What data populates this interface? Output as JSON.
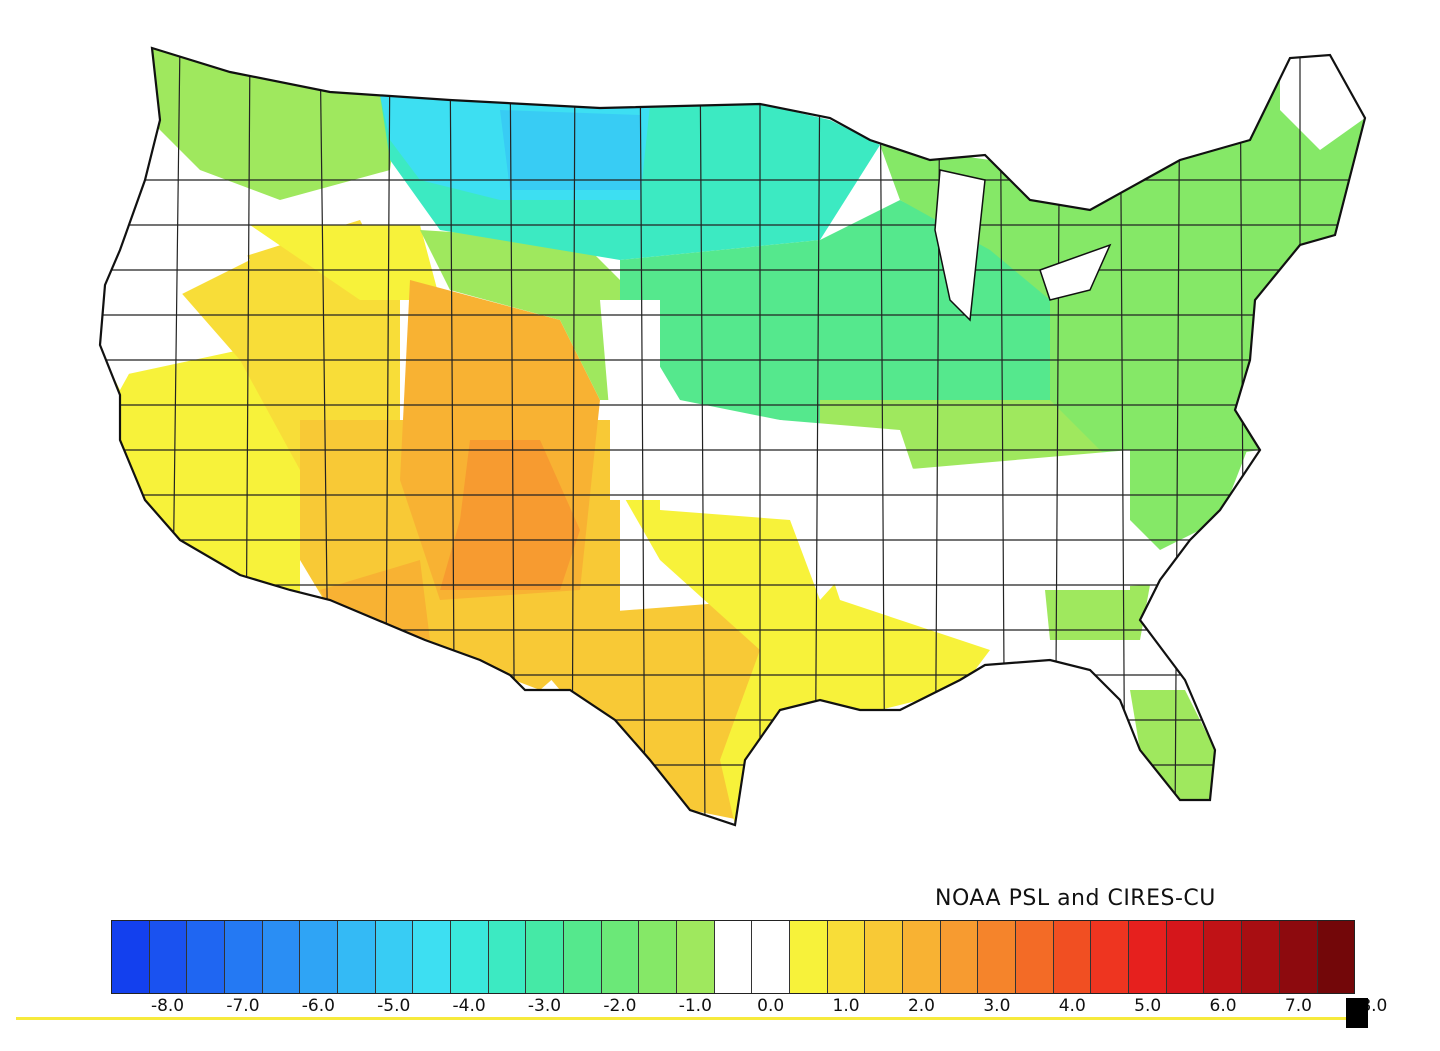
{
  "credit": "NOAA PSL and CIRES-CU",
  "legend": {
    "labels": [
      "-8.0",
      "-7.0",
      "-6.0",
      "-5.0",
      "-4.0",
      "-3.0",
      "-2.0",
      "-1.0",
      "0.0",
      "1.0",
      "2.0",
      "3.0",
      "4.0",
      "5.0",
      "6.0",
      "7.0",
      "8.0"
    ],
    "colors": [
      "#1340ee",
      "#1a52f0",
      "#1f66f2",
      "#2479f3",
      "#2a8ef4",
      "#2fa4f5",
      "#34baf5",
      "#38ccf4",
      "#3ddff2",
      "#3ae8dc",
      "#3ceac2",
      "#45e9a6",
      "#55e88d",
      "#6be878",
      "#85e867",
      "#9fe85e",
      "#ffffff",
      "#ffffff",
      "#f7f23a",
      "#f8dd38",
      "#f8c936",
      "#f8b233",
      "#f79b30",
      "#f5842b",
      "#f36b26",
      "#f14f22",
      "#ee3520",
      "#e6201e",
      "#d5161b",
      "#c01216",
      "#a80e12",
      "#8d0a0e",
      "#730709"
    ]
  },
  "map": {
    "region_colors": {
      "white": "#ffffff",
      "yellow": "#f7f23a",
      "yellow_orange": "#f8dd38",
      "light_orange": "#f8c936",
      "orange": "#f8b233",
      "dark_orange": "#f79b30",
      "light_green": "#9fe85e",
      "green": "#85e867",
      "teal_green": "#55e88d",
      "teal": "#45e9a6",
      "aqua": "#3ceac2",
      "cyan": "#3ddff2",
      "sky": "#38ccf4"
    }
  }
}
